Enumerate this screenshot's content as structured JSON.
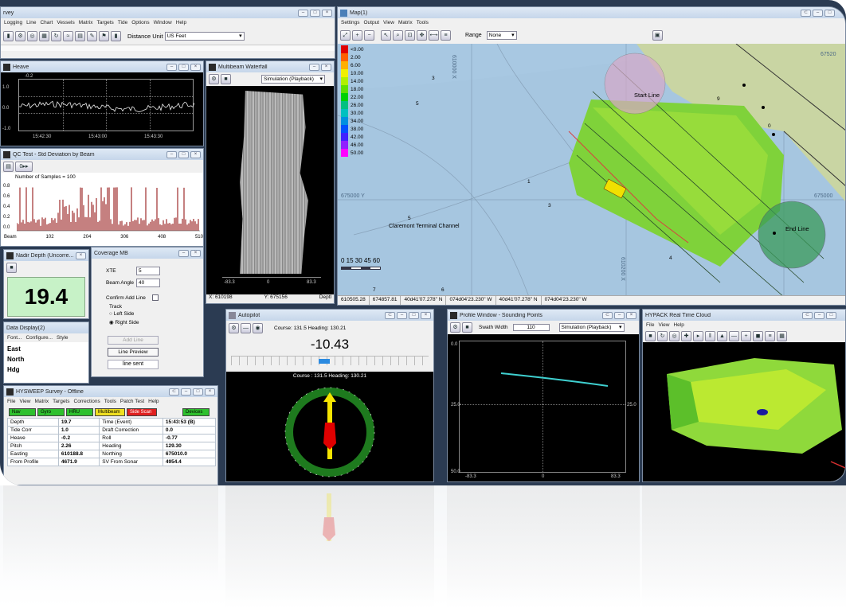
{
  "survey": {
    "title": "rvey",
    "menu": [
      "Logging",
      "Line",
      "Chart",
      "Vessels",
      "Matrix",
      "Targets",
      "Tide",
      "Options",
      "Window",
      "Help"
    ],
    "distance_label": "Distance Unit",
    "distance_value": "US Feet"
  },
  "heave": {
    "title": "Heave",
    "y_top": "-0.2",
    "y_labels": [
      "1.0",
      "0.0",
      "-1.0"
    ],
    "x_labels": [
      "15:42:30",
      "15:43:00",
      "15:43:30"
    ]
  },
  "waterfall": {
    "title": "Multibeam Waterfall",
    "mode": "Simulation (Playback)",
    "scale_labels": [
      "-83.3",
      "0",
      "83.3"
    ],
    "x_readout": "X: 610198",
    "y_readout": "Y: 675156",
    "depth_label": "Deptl"
  },
  "qc": {
    "title": "QC Test - Std Deviation by Beam",
    "samples": "Number of Samples = 100",
    "y_labels": [
      "0.8",
      "0.6",
      "0.4",
      "0.2",
      "0.0"
    ],
    "x_labels": [
      "Beam",
      "102",
      "204",
      "306",
      "408",
      "510"
    ]
  },
  "nadir": {
    "title": "Nadir Depth (Uncorre...",
    "value": "19.4"
  },
  "coverage": {
    "title": "Coverage MB",
    "xte_label": "XTE",
    "xte_value": "5",
    "beam_label": "Beam Angle",
    "beam_value": "40",
    "confirm_label": "Confirm Add Line",
    "track_label": "Track",
    "left_side": "Left Side",
    "right_side": "Right Side",
    "add_line": "Add Line",
    "line_preview": "Line Preview",
    "line_sent": "line sent"
  },
  "data_display": {
    "title": "Data Display(2)",
    "menu": [
      "Font...",
      "Configure...",
      "Style"
    ],
    "rows": [
      "East",
      "North",
      "Hdg"
    ]
  },
  "hysweep": {
    "title": "HYSWEEP Survey - Offline",
    "menu": [
      "File",
      "View",
      "Matrix",
      "Targets",
      "Corrections",
      "Tools",
      "Patch Test",
      "Help"
    ],
    "status": [
      "Nav",
      "Gyro",
      "HRU",
      "Multibeam",
      "Side Scan",
      "Devices"
    ],
    "rows": [
      {
        "l1": "Depth",
        "v1": "19.7",
        "l2": "Time (Event)",
        "v2": "15:43:53 (B)"
      },
      {
        "l1": "Tide Corr",
        "v1": "1.0",
        "l2": "Draft Correction",
        "v2": "0.0"
      },
      {
        "l1": "Heave",
        "v1": "-0.2",
        "l2": "Roll",
        "v2": "-0.77"
      },
      {
        "l1": "Pitch",
        "v1": "2.26",
        "l2": "Heading",
        "v2": "129.30"
      },
      {
        "l1": "Easting",
        "v1": "610188.8",
        "l2": "Northing",
        "v2": "675010.0"
      },
      {
        "l1": "From Profile",
        "v1": "4671.9",
        "l2": "SV From Sonar",
        "v2": "4954.4"
      }
    ]
  },
  "map": {
    "title": "Map(1)",
    "menu": [
      "Settings",
      "Output",
      "View",
      "Matrix",
      "Tools"
    ],
    "range_label": "Range",
    "range_value": "None",
    "legend": [
      "<0.00",
      "2.00",
      "6.00",
      "10.00",
      "14.00",
      "18.00",
      "22.00",
      "26.00",
      "30.00",
      "34.00",
      "38.00",
      "42.00",
      "46.00",
      "50.00"
    ],
    "legend_colors": [
      "#e00000",
      "#ff6000",
      "#ffb000",
      "#f0f000",
      "#b0f000",
      "#60e000",
      "#00d000",
      "#00c080",
      "#00c0c0",
      "#0090e0",
      "#0050ff",
      "#4020ff",
      "#9020ff",
      "#ff00ff"
    ],
    "start_line": "Start Line",
    "end_line": "End Line",
    "channel": "Claremont Terminal Channel",
    "scale": "0  15 30 45 60",
    "grid_y": "675000 Y",
    "grid_y_right": "675000",
    "grid_top_right": "67520",
    "grid_x1": "610000 X",
    "grid_x2": "610200 X",
    "soundings": [
      "3",
      "5",
      "1",
      "3",
      "5",
      "7",
      "6",
      "4",
      "0",
      "9"
    ],
    "status": [
      "610505.28",
      "674857.81",
      "40d41'07.278\" N",
      "074d04'23.230\" W",
      "40d41'07.278\" N",
      "074d04'23.230\" W"
    ]
  },
  "autopilot": {
    "title": "Autopilot",
    "course_top": "Course: 131.5  Heading: 130.21",
    "value": "-10.43",
    "course_compass": "Course : 131.5  Heading: 130.21"
  },
  "profile": {
    "title": "Profile Window - Sounding Points",
    "swath_label": "Swath Width",
    "swath_value": "110",
    "mode": "Simulation (Playback)",
    "y_labels": [
      "0.0",
      "25.0",
      "50.0"
    ],
    "x_labels": [
      "-83.3",
      "0",
      "83.3"
    ]
  },
  "cloud": {
    "title": "HYPACK Real Time Cloud",
    "menu": [
      "File",
      "View",
      "Help"
    ]
  }
}
